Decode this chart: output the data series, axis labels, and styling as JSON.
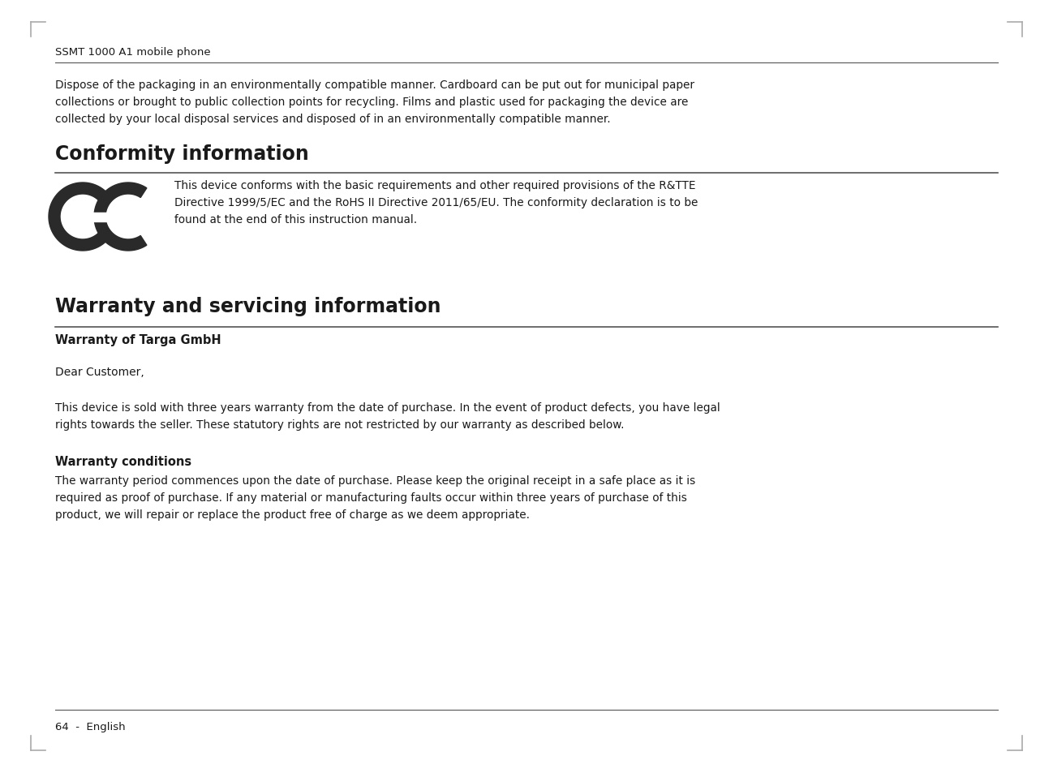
{
  "background_color": "#ffffff",
  "header_text": "SSMT 1000 A1 mobile phone",
  "footer_text": "64  -  English",
  "intro_paragraph": "Dispose of the packaging in an environmentally compatible manner. Cardboard can be put out for municipal paper\ncollections or brought to public collection points for recycling. Films and plastic used for packaging the device are\ncollected by your local disposal services and disposed of in an environmentally compatible manner.",
  "section1_title": "Conformity information",
  "ce_text": "This device conforms with the basic requirements and other required provisions of the R&TTE\nDirective 1999/5/EC and the RoHS II Directive 2011/65/EU. The conformity declaration is to be\nfound at the end of this instruction manual.",
  "section2_title": "Warranty and servicing information",
  "subsection1_title": "Warranty of Targa GmbH",
  "dear_customer": "Dear Customer,",
  "warranty_para": "This device is sold with three years warranty from the date of purchase. In the event of product defects, you have legal\nrights towards the seller. These statutory rights are not restricted by our warranty as described below.",
  "subsection2_title": "Warranty conditions",
  "warranty_conditions_para": "The warranty period commences upon the date of purchase. Please keep the original receipt in a safe place as it is\nrequired as proof of purchase. If any material or manufacturing faults occur within three years of purchase of this\nproduct, we will repair or replace the product free of charge as we deem appropriate.",
  "text_color": "#1a1a1a",
  "line_color": "#555555",
  "title_color": "#1a1a1a",
  "corner_mark_color": "#aaaaaa"
}
